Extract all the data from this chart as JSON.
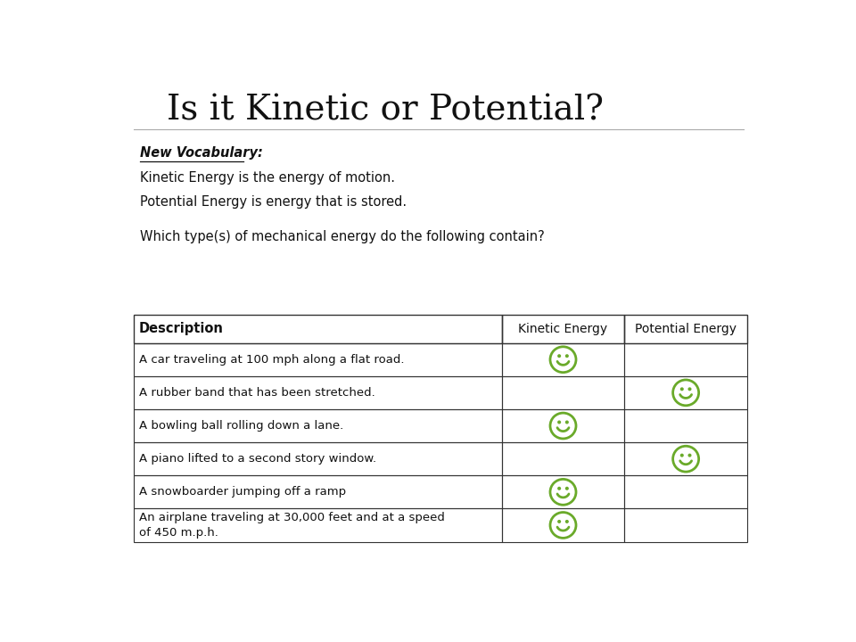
{
  "title": "Is it Kinetic or Potential?",
  "title_fontsize": 28,
  "vocab_header": "New Vocabulary:",
  "vocab_lines": [
    "Kinetic Energy is the energy of motion.",
    "Potential Energy is energy that is stored."
  ],
  "question": "Which type(s) of mechanical energy do the following contain?",
  "table_headers": [
    "Description",
    "Kinetic Energy",
    "Potential Energy"
  ],
  "rows": [
    {
      "description": "A car traveling at 100 mph along a flat road.",
      "kinetic": true,
      "potential": false
    },
    {
      "description": "A rubber band that has been stretched.",
      "kinetic": false,
      "potential": true
    },
    {
      "description": "A bowling ball rolling down a lane.",
      "kinetic": true,
      "potential": false
    },
    {
      "description": "A piano lifted to a second story window.",
      "kinetic": false,
      "potential": true
    },
    {
      "description": "A snowboarder jumping off a ramp",
      "kinetic": true,
      "potential": false
    },
    {
      "description": "An airplane traveling at 30,000 feet and at a speed\nof 450 m.p.h.",
      "kinetic": true,
      "potential": false
    }
  ],
  "background_color": "#ffffff",
  "smiley_color": "#6aaa2a",
  "smiley_outline": "#4a8a1a",
  "table_line_color": "#333333"
}
